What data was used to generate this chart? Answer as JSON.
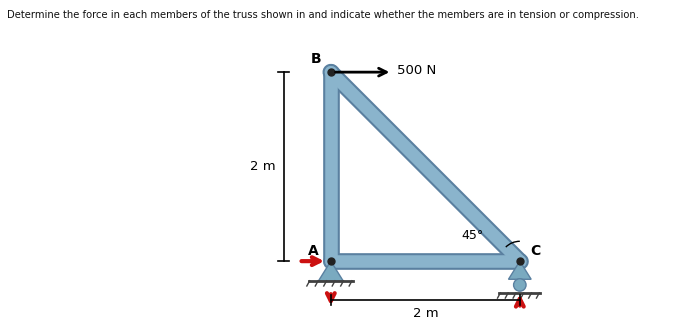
{
  "title": "Determine the force in each members of the truss shown in and indicate whether the members are in tension or compression.",
  "bg_color": "#f5eecc",
  "outer_bg": "#ffffff",
  "nodes": {
    "A": [
      0.0,
      0.0
    ],
    "B": [
      0.0,
      2.0
    ],
    "C": [
      2.0,
      0.0
    ]
  },
  "member_color": "#8ab4cc",
  "member_lw": 9,
  "member_edge_color": "#5a80a0",
  "member_edge_lw": 12,
  "pin_color": "#7aaac0",
  "reaction_color": "#cc1111",
  "node_dot_color": "#222222"
}
